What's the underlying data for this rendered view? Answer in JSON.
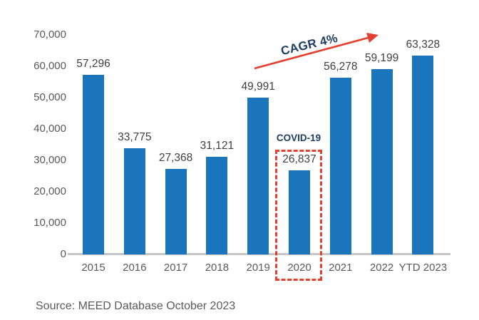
{
  "chart_data": {
    "type": "bar",
    "title": "",
    "xlabel": "",
    "ylabel": "",
    "categories": [
      "2015",
      "2016",
      "2017",
      "2018",
      "2019",
      "2020",
      "2021",
      "2022",
      "YTD 2023"
    ],
    "values": [
      57296,
      33775,
      27368,
      31121,
      49991,
      26837,
      56278,
      59199,
      63328
    ],
    "value_labels": [
      "57,296",
      "33,775",
      "27,368",
      "31,121",
      "49,991",
      "26,837",
      "56,278",
      "59,199",
      "63,328"
    ],
    "ylim": [
      0,
      70000
    ],
    "ytick_step": 10000,
    "ytick_labels": [
      "0",
      "10,000",
      "20,000",
      "30,000",
      "40,000",
      "50,000",
      "60,000",
      "70,000"
    ],
    "grid": false,
    "legend": false,
    "annotations": {
      "cagr": {
        "label": "CAGR 4%"
      },
      "covid": {
        "label": "COVID-19",
        "highlight_category": "2020"
      }
    }
  },
  "source_text": "Source: MEED Database October 2023",
  "colors": {
    "bar": "#1B75BC",
    "annotation_text": "#1F3D64",
    "accent_red": "#E3402F",
    "value_label": "#3F3F3F",
    "axis_label": "#595959",
    "baseline": "#C7C7C7"
  }
}
